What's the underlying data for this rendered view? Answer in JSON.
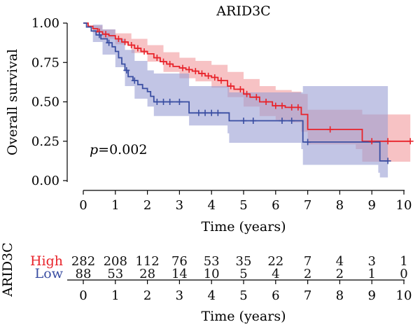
{
  "chart_data": [
    {
      "type": "line",
      "subtype": "kaplan-meier",
      "title": "ARID3C",
      "xlabel": "Time (years)",
      "ylabel": "Overall survival",
      "xlim": [
        0,
        10
      ],
      "ylim": [
        0,
        1
      ],
      "x_ticks": [
        "0",
        "1",
        "2",
        "3",
        "4",
        "5",
        "6",
        "7",
        "8",
        "9",
        "10"
      ],
      "y_ticks": [
        "0.00",
        "0.25",
        "0.50",
        "0.75",
        "1.00"
      ],
      "annotation": "p=0.002",
      "series": [
        {
          "name": "High",
          "color": "#e8232a",
          "band_color": "#f19a9d",
          "steps": [
            [
              0,
              1.0
            ],
            [
              0.15,
              0.98
            ],
            [
              0.3,
              0.965
            ],
            [
              0.45,
              0.945
            ],
            [
              0.6,
              0.93
            ],
            [
              0.8,
              0.92
            ],
            [
              1.0,
              0.9
            ],
            [
              1.2,
              0.88
            ],
            [
              1.4,
              0.86
            ],
            [
              1.6,
              0.84
            ],
            [
              1.8,
              0.82
            ],
            [
              2.0,
              0.805
            ],
            [
              2.2,
              0.78
            ],
            [
              2.4,
              0.755
            ],
            [
              2.6,
              0.74
            ],
            [
              2.8,
              0.725
            ],
            [
              3.0,
              0.715
            ],
            [
              3.2,
              0.705
            ],
            [
              3.4,
              0.695
            ],
            [
              3.6,
              0.68
            ],
            [
              3.8,
              0.665
            ],
            [
              4.0,
              0.655
            ],
            [
              4.2,
              0.635
            ],
            [
              4.5,
              0.6
            ],
            [
              4.7,
              0.58
            ],
            [
              5.0,
              0.55
            ],
            [
              5.2,
              0.53
            ],
            [
              5.5,
              0.5
            ],
            [
              5.9,
              0.475
            ],
            [
              6.3,
              0.465
            ],
            [
              6.75,
              0.465
            ],
            [
              6.8,
              0.42
            ],
            [
              7.0,
              0.325
            ],
            [
              8.5,
              0.325
            ],
            [
              8.7,
              0.25
            ],
            [
              10.2,
              0.25
            ]
          ],
          "upper": [
            [
              0,
              1.0
            ],
            [
              0.3,
              0.985
            ],
            [
              0.6,
              0.96
            ],
            [
              1.0,
              0.935
            ],
            [
              1.5,
              0.9
            ],
            [
              2.0,
              0.86
            ],
            [
              2.5,
              0.815
            ],
            [
              3.0,
              0.78
            ],
            [
              3.5,
              0.76
            ],
            [
              4.0,
              0.735
            ],
            [
              4.5,
              0.69
            ],
            [
              5.0,
              0.645
            ],
            [
              5.5,
              0.6
            ],
            [
              6.0,
              0.575
            ],
            [
              6.5,
              0.565
            ],
            [
              6.75,
              0.565
            ],
            [
              6.8,
              0.55
            ],
            [
              7.0,
              0.45
            ],
            [
              8.5,
              0.45
            ],
            [
              8.7,
              0.42
            ],
            [
              10.2,
              0.42
            ]
          ],
          "lower": [
            [
              0,
              1.0
            ],
            [
              0.3,
              0.94
            ],
            [
              0.6,
              0.9
            ],
            [
              1.0,
              0.865
            ],
            [
              1.5,
              0.81
            ],
            [
              2.0,
              0.755
            ],
            [
              2.5,
              0.69
            ],
            [
              3.0,
              0.65
            ],
            [
              3.5,
              0.63
            ],
            [
              4.0,
              0.59
            ],
            [
              4.5,
              0.53
            ],
            [
              5.0,
              0.47
            ],
            [
              5.5,
              0.41
            ],
            [
              6.0,
              0.385
            ],
            [
              6.5,
              0.37
            ],
            [
              6.75,
              0.37
            ],
            [
              6.8,
              0.31
            ],
            [
              7.0,
              0.23
            ],
            [
              8.5,
              0.2
            ],
            [
              8.7,
              0.12
            ],
            [
              10.2,
              0.12
            ]
          ],
          "censor_x": [
            0.5,
            0.7,
            1.1,
            1.3,
            1.5,
            1.7,
            1.9,
            2.3,
            2.5,
            2.7,
            3.1,
            3.3,
            3.5,
            3.7,
            3.9,
            4.1,
            4.3,
            4.6,
            4.9,
            5.1,
            5.4,
            5.7,
            6.0,
            6.2,
            6.5,
            6.7,
            7.7,
            9.0,
            9.5,
            10.2
          ]
        },
        {
          "name": "Low",
          "color": "#3a4ea2",
          "band_color": "#9a9fd4",
          "steps": [
            [
              0,
              1.0
            ],
            [
              0.1,
              0.975
            ],
            [
              0.25,
              0.95
            ],
            [
              0.4,
              0.925
            ],
            [
              0.55,
              0.9
            ],
            [
              0.75,
              0.875
            ],
            [
              0.9,
              0.85
            ],
            [
              1.0,
              0.82
            ],
            [
              1.1,
              0.78
            ],
            [
              1.2,
              0.74
            ],
            [
              1.3,
              0.7
            ],
            [
              1.4,
              0.66
            ],
            [
              1.55,
              0.635
            ],
            [
              1.7,
              0.61
            ],
            [
              1.85,
              0.585
            ],
            [
              2.0,
              0.565
            ],
            [
              2.1,
              0.535
            ],
            [
              2.2,
              0.5
            ],
            [
              3.2,
              0.5
            ],
            [
              3.3,
              0.43
            ],
            [
              4.5,
              0.43
            ],
            [
              4.55,
              0.38
            ],
            [
              6.8,
              0.38
            ],
            [
              6.85,
              0.245
            ],
            [
              9.2,
              0.245
            ],
            [
              9.25,
              0.125
            ],
            [
              9.5,
              0.125
            ]
          ],
          "upper": [
            [
              0,
              1.0
            ],
            [
              0.3,
              0.99
            ],
            [
              0.6,
              0.96
            ],
            [
              1.0,
              0.9
            ],
            [
              1.3,
              0.83
            ],
            [
              1.6,
              0.76
            ],
            [
              2.0,
              0.7
            ],
            [
              2.2,
              0.68
            ],
            [
              3.2,
              0.68
            ],
            [
              3.3,
              0.6
            ],
            [
              4.5,
              0.6
            ],
            [
              4.55,
              0.56
            ],
            [
              6.8,
              0.56
            ],
            [
              6.85,
              0.6
            ],
            [
              9.2,
              0.6
            ],
            [
              9.25,
              0.6
            ],
            [
              9.5,
              0.6
            ]
          ],
          "lower": [
            [
              0,
              1.0
            ],
            [
              0.3,
              0.88
            ],
            [
              0.6,
              0.8
            ],
            [
              1.0,
              0.72
            ],
            [
              1.3,
              0.6
            ],
            [
              1.6,
              0.52
            ],
            [
              2.0,
              0.47
            ],
            [
              2.2,
              0.41
            ],
            [
              3.2,
              0.41
            ],
            [
              3.3,
              0.35
            ],
            [
              4.5,
              0.3
            ],
            [
              4.55,
              0.24
            ],
            [
              6.8,
              0.2
            ],
            [
              6.85,
              0.1
            ],
            [
              9.2,
              0.05
            ],
            [
              9.25,
              0.02
            ],
            [
              9.5,
              0.02
            ]
          ],
          "censor_x": [
            0.5,
            0.8,
            1.35,
            1.6,
            2.3,
            2.5,
            2.7,
            3.0,
            3.6,
            3.8,
            4.0,
            4.2,
            5.0,
            5.3,
            6.2,
            6.5,
            7.0,
            9.5
          ]
        }
      ]
    },
    {
      "type": "table",
      "title": "ARID3C",
      "xlabel": "Time (years)",
      "x_ticks": [
        "0",
        "1",
        "2",
        "3",
        "4",
        "5",
        "6",
        "7",
        "8",
        "9",
        "10"
      ],
      "rows": [
        {
          "label": "High",
          "color": "#e8232a",
          "values": [
            282,
            208,
            112,
            76,
            53,
            35,
            22,
            7,
            4,
            3,
            1
          ]
        },
        {
          "label": "Low",
          "color": "#3a4ea2",
          "values": [
            88,
            53,
            28,
            14,
            10,
            5,
            4,
            2,
            2,
            1,
            0
          ]
        }
      ]
    }
  ]
}
